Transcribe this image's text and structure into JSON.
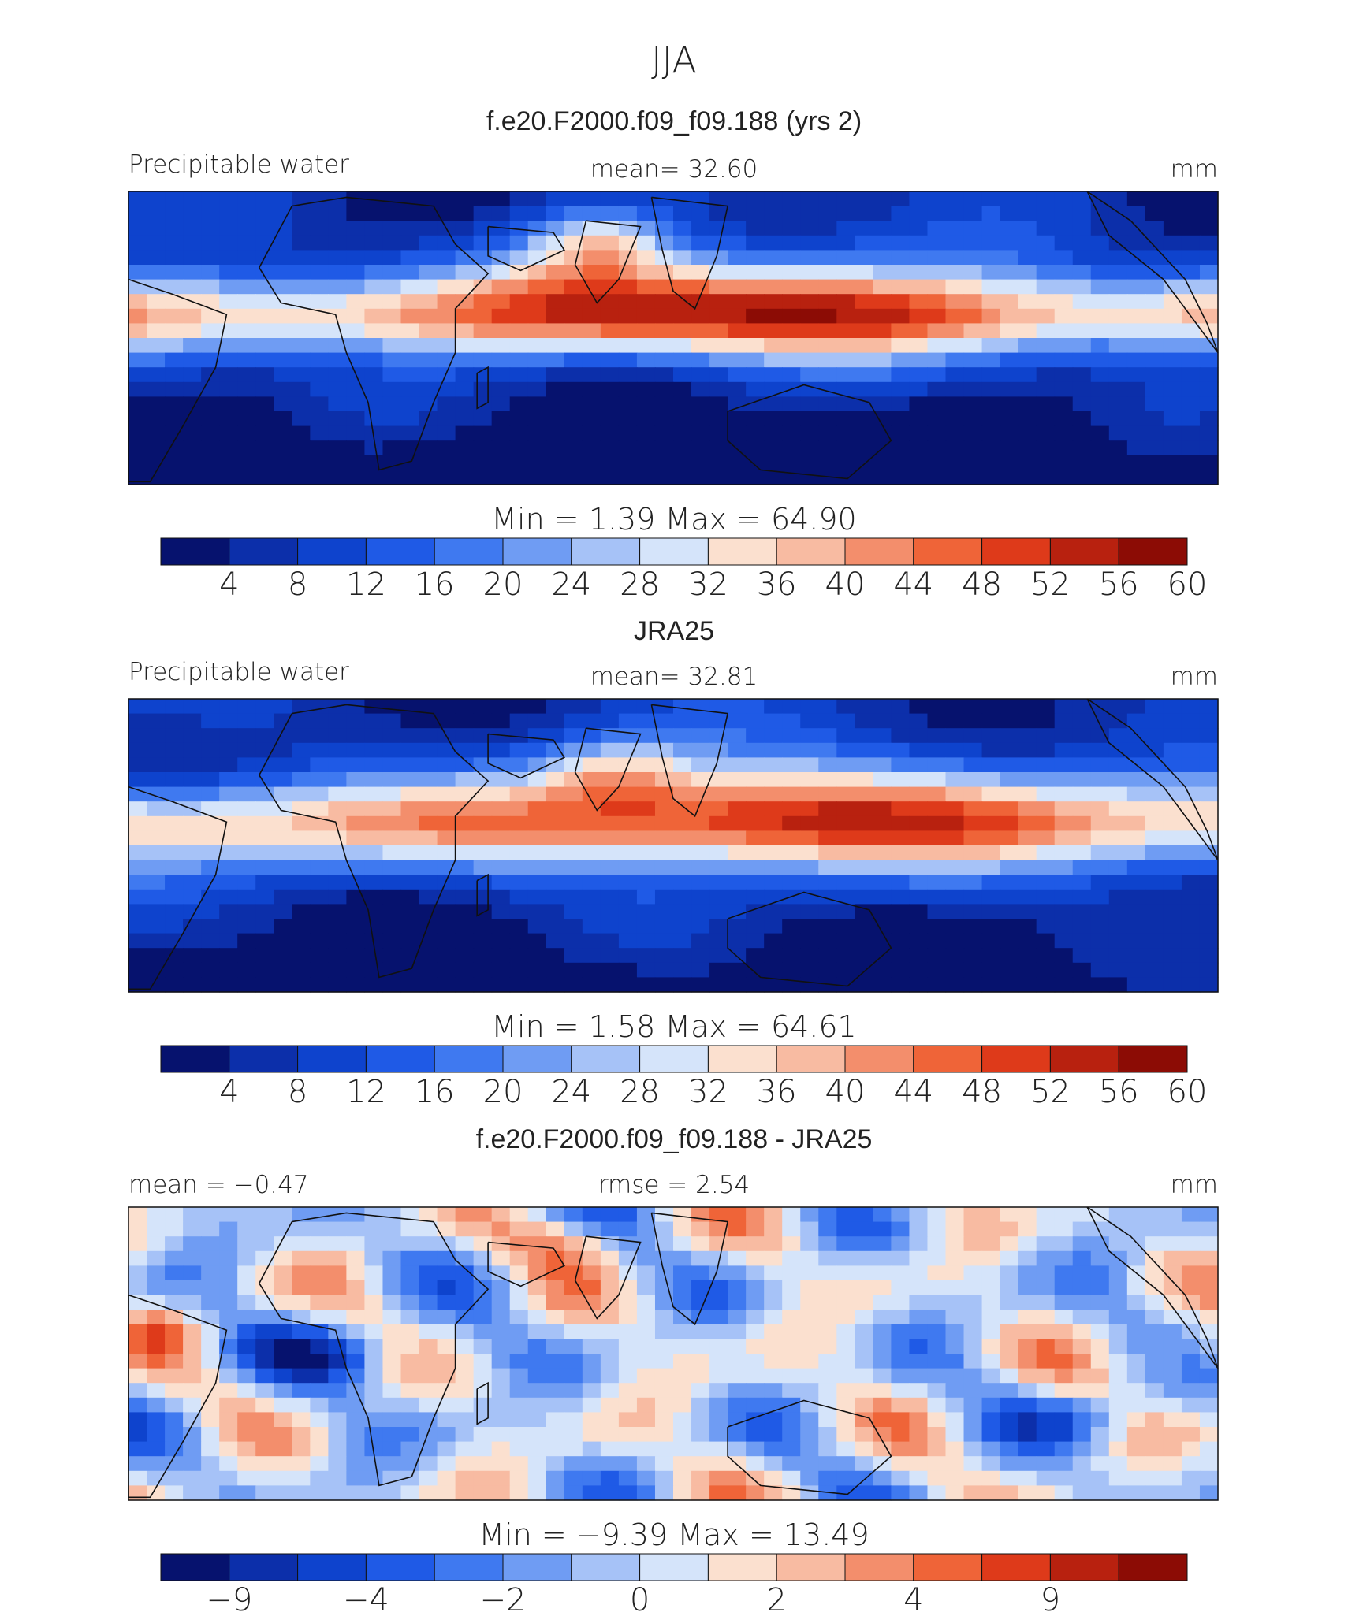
{
  "figure": {
    "season_title": "JJA"
  },
  "chart_data": [
    {
      "type": "heatmap",
      "title": "f.e20.F2000.f09_f09.188 (yrs 2)",
      "variable": "Precipitable water",
      "stat_left": "",
      "stat_center": "mean=   32.60",
      "units": "mm",
      "min_max": "Min  =     1.39  Max  =    64.90",
      "colorbar_labels": [
        "4",
        "8",
        "12",
        "16",
        "20",
        "24",
        "28",
        "32",
        "36",
        "40",
        "44",
        "48",
        "52",
        "56",
        "60"
      ],
      "colorbar_colors": [
        "#06126e",
        "#0c2faa",
        "#0e43cd",
        "#1f5ae6",
        "#3f79f0",
        "#6f9cf3",
        "#a6c2f7",
        "#d5e4fa",
        "#fbe0cf",
        "#f8bba2",
        "#f38e6c",
        "#ef6438",
        "#de3a1a",
        "#b8210f",
        "#8c0c05"
      ],
      "land_ranges": [
        [
          0,
          16
        ],
        [
          16,
          30
        ],
        [
          4,
          20
        ],
        [
          2,
          14
        ]
      ],
      "field_style": "model"
    },
    {
      "type": "heatmap",
      "title": "JRA25",
      "variable": "Precipitable water",
      "stat_left": "",
      "stat_center": "mean=   32.81",
      "units": "mm",
      "min_max": "Min  =     1.58  Max  =    64.61",
      "colorbar_labels": [
        "4",
        "8",
        "12",
        "16",
        "20",
        "24",
        "28",
        "32",
        "36",
        "40",
        "44",
        "48",
        "52",
        "56",
        "60"
      ],
      "colorbar_colors": [
        "#06126e",
        "#0c2faa",
        "#0e43cd",
        "#1f5ae6",
        "#3f79f0",
        "#6f9cf3",
        "#a6c2f7",
        "#d5e4fa",
        "#fbe0cf",
        "#f8bba2",
        "#f38e6c",
        "#ef6438",
        "#de3a1a",
        "#b8210f",
        "#8c0c05"
      ],
      "field_style": "obs"
    },
    {
      "type": "heatmap",
      "title": "f.e20.F2000.f09_f09.188 - JRA25",
      "variable": "",
      "stat_left": "mean =   −0.47",
      "stat_center": "rmse =    2.54",
      "units": "mm",
      "min_max": "Min  =   −9.39  Max  =   13.49",
      "colorbar_labels": [
        "−9",
        "−4",
        "−2",
        "0",
        "2",
        "4",
        "9"
      ],
      "colorbar_colors": [
        "#06126e",
        "#0c2faa",
        "#0e43cd",
        "#1f5ae6",
        "#3f79f0",
        "#6f9cf3",
        "#a6c2f7",
        "#d5e4fa",
        "#fbe0cf",
        "#f8bba2",
        "#f38e6c",
        "#ef6438",
        "#de3a1a",
        "#b8210f",
        "#8c0c05"
      ],
      "field_style": "diff"
    }
  ]
}
